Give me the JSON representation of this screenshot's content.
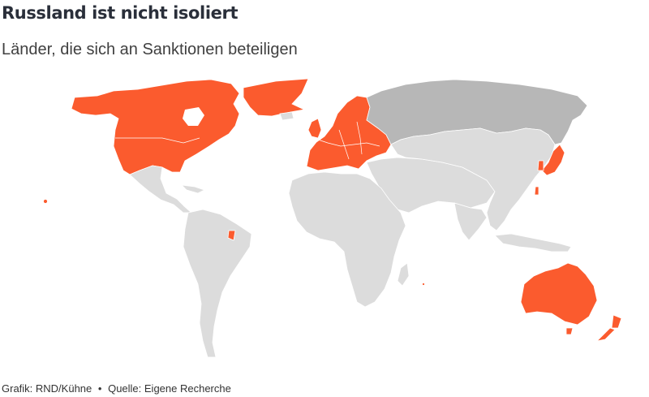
{
  "header": {
    "title": "Russland ist nicht isoliert",
    "subtitle": "Länder, die sich an Sanktionen beteiligen"
  },
  "footer": {
    "credit": "Grafik: RND/Kühne",
    "separator": "•",
    "source": "Quelle: Eigene Recherche"
  },
  "colors": {
    "sanctioning": "#fb5b2e",
    "neutral": "#dcdcdc",
    "russia": "#b7b7b7"
  }
}
